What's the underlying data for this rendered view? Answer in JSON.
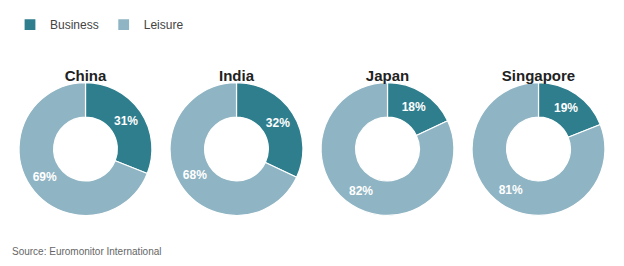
{
  "chart_data": [
    {
      "type": "pie",
      "title": "China",
      "categories": [
        "Business",
        "Leisure"
      ],
      "values": [
        31,
        69
      ],
      "value_labels": [
        "31%",
        "69%"
      ],
      "colors": [
        "#2e7e8e",
        "#8fb4c3"
      ],
      "data_labels": true,
      "legend": "upper left",
      "annotations": [
        "Source: Euromonitor International"
      ]
    },
    {
      "type": "pie",
      "title": "India",
      "categories": [
        "Business",
        "Leisure"
      ],
      "values": [
        32,
        68
      ],
      "value_labels": [
        "32%",
        "68%"
      ],
      "colors": [
        "#2e7e8e",
        "#8fb4c3"
      ],
      "data_labels": true,
      "legend": "upper left"
    },
    {
      "type": "pie",
      "title": "Japan",
      "categories": [
        "Business",
        "Leisure"
      ],
      "values": [
        18,
        82
      ],
      "value_labels": [
        "18%",
        "82%"
      ],
      "colors": [
        "#2e7e8e",
        "#8fb4c3"
      ],
      "data_labels": true,
      "legend": "upper left"
    },
    {
      "type": "pie",
      "title": "Singapore",
      "categories": [
        "Business",
        "Leisure"
      ],
      "values": [
        19,
        81
      ],
      "value_labels": [
        "19%",
        "81%"
      ],
      "colors": [
        "#2e7e8e",
        "#8fb4c3"
      ],
      "data_labels": true,
      "legend": "upper left"
    }
  ]
}
